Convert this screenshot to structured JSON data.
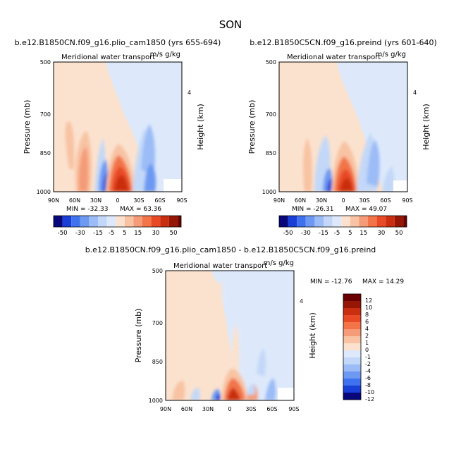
{
  "title": "SON",
  "chart_data": [
    {
      "type": "heatmap",
      "run_title": "b.e12.B1850CN.f09_g16.plio_cam1850 (yrs 655-694)",
      "subtitle": "Meridional water transport",
      "units": "m/s g/kg",
      "ylabel": "Pressure (mb)",
      "ylabel_right": "Height (km)",
      "x_ticks": [
        "90N",
        "60N",
        "30N",
        "0",
        "30S",
        "60S",
        "90S"
      ],
      "y_ticks": [
        "500",
        "700",
        "850",
        "1000"
      ],
      "y_ticks_right": [
        "4"
      ],
      "min_label": "MIN = -32.33",
      "max_label": "MAX = 63.36",
      "min": -32.33,
      "max": 63.36,
      "colorbar_ticks": [
        "-50",
        "-30",
        "-15",
        "-5",
        "5",
        "15",
        "30",
        "50"
      ]
    },
    {
      "type": "heatmap",
      "run_title": "b.e12.B1850C5CN.f09_g16.preind (yrs 601-640)",
      "subtitle": "Meridional water transport",
      "units": "m/s g/kg",
      "ylabel": "Pressure (mb)",
      "ylabel_right": "Height (km)",
      "x_ticks": [
        "90N",
        "60N",
        "30N",
        "0",
        "30S",
        "60S",
        "90S"
      ],
      "y_ticks": [
        "500",
        "700",
        "850",
        "1000"
      ],
      "y_ticks_right": [
        "4"
      ],
      "min_label": "MIN = -26.31",
      "max_label": "MAX = 49.07",
      "min": -26.31,
      "max": 49.07,
      "colorbar_ticks": [
        "-50",
        "-30",
        "-15",
        "-5",
        "5",
        "15",
        "30",
        "50"
      ]
    },
    {
      "type": "heatmap",
      "run_title": "b.e12.B1850CN.f09_g16.plio_cam1850 - b.e12.B1850C5CN.f09_g16.preind",
      "subtitle": "Meridional water transport",
      "units": "m/s g/kg",
      "ylabel": "Pressure (mb)",
      "ylabel_right": "Height (km)",
      "x_ticks": [
        "90N",
        "60N",
        "30N",
        "0",
        "30S",
        "60S",
        "90S"
      ],
      "y_ticks": [
        "500",
        "700",
        "850",
        "1000"
      ],
      "y_ticks_right": [
        "4"
      ],
      "min_label": "MIN = -12.76",
      "max_label": "MAX = 14.29",
      "min": -12.76,
      "max": 14.29,
      "colorbar_ticks": [
        "12",
        "10",
        "8",
        "6",
        "4",
        "2",
        "1",
        "0",
        "-1",
        "-2",
        "-4",
        "-6",
        "-8",
        "-10",
        "-12"
      ]
    }
  ],
  "colors": {
    "diverging": [
      "#08087a",
      "#1a3fd6",
      "#3f72ee",
      "#6d99f2",
      "#9bbcf6",
      "#c3d8f8",
      "#dde9fb",
      "#fbe2cf",
      "#f8c3a3",
      "#f59b77",
      "#f27448",
      "#e84a26",
      "#c92e10",
      "#951604",
      "#6b0000"
    ]
  }
}
